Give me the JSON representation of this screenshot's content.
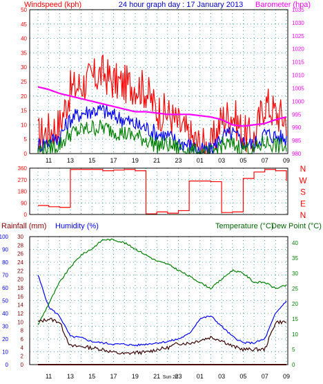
{
  "header": {
    "left": "Windspeed (kph)",
    "center": "24 hour graph day : 17 January 2013",
    "right": "Barometer (hpa)"
  },
  "colors": {
    "background": "#ffffff",
    "grid": "#1a8a8a",
    "wind_gust": "#ff0000",
    "wind_avg": "#0000ff",
    "wind_min": "#008000",
    "barometer": "#ff00ff",
    "direction": "#ff0000",
    "rainfall": "#8b0000",
    "humidity": "#0000ff",
    "temperature": "#008000",
    "dewpoint": "#3a0000",
    "left_label": "#ff0000",
    "right_label": "#ff00ff",
    "title": "#0000cc",
    "bottom_left_label": "#8b0000",
    "humidity_label": "#0000ff",
    "temp_label": "#006400",
    "axis_left_humidity": "#0000ff",
    "axis_right_temp": "#008000",
    "axis_left_rain": "#8b0000"
  },
  "x_ticks": [
    "11",
    "13",
    "15",
    "17",
    "19",
    "21",
    "23",
    "01",
    "03",
    "05",
    "07",
    "09"
  ],
  "x_ticks_bottom": [
    "11",
    "13",
    "15",
    "17",
    "19",
    "21",
    "Sun 20",
    "23",
    "01",
    "03",
    "05",
    "07",
    "09"
  ],
  "wind_panel": {
    "left_ticks": [
      "50",
      "45",
      "40",
      "35",
      "30",
      "25",
      "20",
      "15",
      "10",
      "5",
      "0"
    ],
    "right_ticks": [
      "1035",
      "1030",
      "1025",
      "1020",
      "1015",
      "1010",
      "1005",
      "1000",
      "995",
      "990",
      "985",
      "980"
    ]
  },
  "dir_panel": {
    "left_ticks": [
      "360",
      "270",
      "180",
      "90",
      "0"
    ],
    "right_letters": [
      "N",
      "W",
      "S",
      "E",
      "N"
    ]
  },
  "bottom_panel": {
    "title_left_1": "Rainfall (mm)",
    "title_left_2": "Humidity (%)",
    "title_right_1": "Temperature (°C)",
    "title_right_2": "Dew Point (°C)",
    "humidity_ticks": [
      "100",
      "90",
      "80",
      "70",
      "60",
      "50",
      "40",
      "30",
      "20",
      "10",
      "0"
    ],
    "rain_ticks": [
      "30",
      "28",
      "26",
      "24",
      "22",
      "20",
      "18",
      "16",
      "14",
      "12",
      "10",
      "8",
      "6",
      "4",
      "2",
      "0"
    ],
    "temp_ticks": [
      "40",
      "35",
      "30",
      "25",
      "20",
      "15",
      "10",
      "5",
      "0"
    ]
  },
  "chart_data": [
    {
      "type": "line",
      "title": "24 hour graph day : 17 January 2013",
      "ylabel": "Windspeed (kph)",
      "y2label": "Barometer (hpa)",
      "ylim": [
        0,
        50
      ],
      "y2lim": [
        980,
        1035
      ],
      "x": [
        "10",
        "11",
        "12",
        "13",
        "14",
        "15",
        "16",
        "17",
        "18",
        "19",
        "20",
        "21",
        "22",
        "23",
        "00",
        "01",
        "02",
        "03",
        "04",
        "05",
        "06",
        "07",
        "08",
        "09"
      ],
      "series": [
        {
          "name": "Windspeed gust",
          "values": [
            6,
            8,
            10,
            22,
            24,
            26,
            28,
            25,
            24,
            24,
            22,
            15,
            14,
            10,
            6,
            3,
            2,
            12,
            14,
            7,
            5,
            18,
            14,
            12
          ]
        },
        {
          "name": "Windspeed average",
          "values": [
            3,
            4,
            6,
            12,
            14,
            15,
            15,
            13,
            12,
            10,
            9,
            7,
            6,
            4,
            3,
            1,
            1,
            6,
            7,
            4,
            3,
            7,
            6,
            5
          ]
        },
        {
          "name": "Windspeed minimum",
          "values": [
            1,
            2,
            3,
            7,
            8,
            9,
            9,
            8,
            7,
            6,
            5,
            3,
            3,
            2,
            1,
            0,
            0,
            3,
            3,
            2,
            1,
            4,
            3,
            2
          ]
        },
        {
          "name": "Barometer",
          "values": [
            1005.5,
            1004.5,
            1003,
            1002,
            1001,
            1000,
            999,
            998,
            997,
            996,
            996,
            995.5,
            995,
            995,
            995,
            994.5,
            994,
            993,
            991,
            990.5,
            991,
            991.5,
            993,
            994
          ]
        }
      ]
    },
    {
      "type": "line",
      "ylabel": "Wind direction (deg)",
      "ylim": [
        0,
        360
      ],
      "x": [
        "10",
        "11",
        "12",
        "13",
        "14",
        "15",
        "16",
        "17",
        "18",
        "19",
        "20",
        "21",
        "22",
        "23",
        "00",
        "01",
        "02",
        "03",
        "04",
        "05",
        "06",
        "07",
        "08",
        "09"
      ],
      "values": [
        70,
        60,
        55,
        350,
        350,
        350,
        340,
        345,
        350,
        340,
        5,
        20,
        10,
        30,
        260,
        260,
        255,
        15,
        20,
        280,
        330,
        350,
        340,
        260
      ]
    },
    {
      "type": "line",
      "ylabel": "Humidity (%)",
      "y2label": "Temperature (°C)",
      "ylim": [
        0,
        100
      ],
      "y2lim": [
        0,
        42
      ],
      "x": [
        "10",
        "11",
        "12",
        "13",
        "14",
        "15",
        "16",
        "17",
        "18",
        "19",
        "20",
        "21",
        "22",
        "23",
        "00",
        "01",
        "02",
        "03",
        "04",
        "05",
        "06",
        "07",
        "08",
        "09"
      ],
      "series": [
        {
          "name": "Rainfall",
          "axis": "rain_mm",
          "values": [
            0,
            0,
            0,
            0,
            0,
            0,
            0,
            0,
            0,
            0,
            0,
            0,
            0,
            0,
            0,
            0,
            0,
            0,
            0,
            0,
            0,
            0,
            0,
            0
          ]
        },
        {
          "name": "Humidity",
          "axis": "humidity",
          "values": [
            70,
            45,
            38,
            22,
            21,
            18,
            17,
            16,
            16,
            15,
            16,
            17,
            18,
            20,
            24,
            36,
            38,
            30,
            22,
            17,
            17,
            20,
            40,
            50
          ]
        },
        {
          "name": "Temperature",
          "axis": "temp",
          "values": [
            13,
            20,
            27,
            32,
            36,
            38,
            41,
            41,
            40,
            38,
            36,
            34,
            33,
            31,
            29,
            27,
            25,
            28,
            31,
            30,
            27,
            27,
            25,
            26
          ]
        },
        {
          "name": "Dew Point",
          "axis": "temp",
          "values": [
            14,
            15,
            14,
            6,
            6,
            5.5,
            5,
            4,
            3.5,
            4,
            4,
            5,
            5.5,
            7,
            7,
            8,
            9,
            8,
            6,
            5,
            5,
            5,
            14,
            14
          ]
        }
      ]
    }
  ]
}
